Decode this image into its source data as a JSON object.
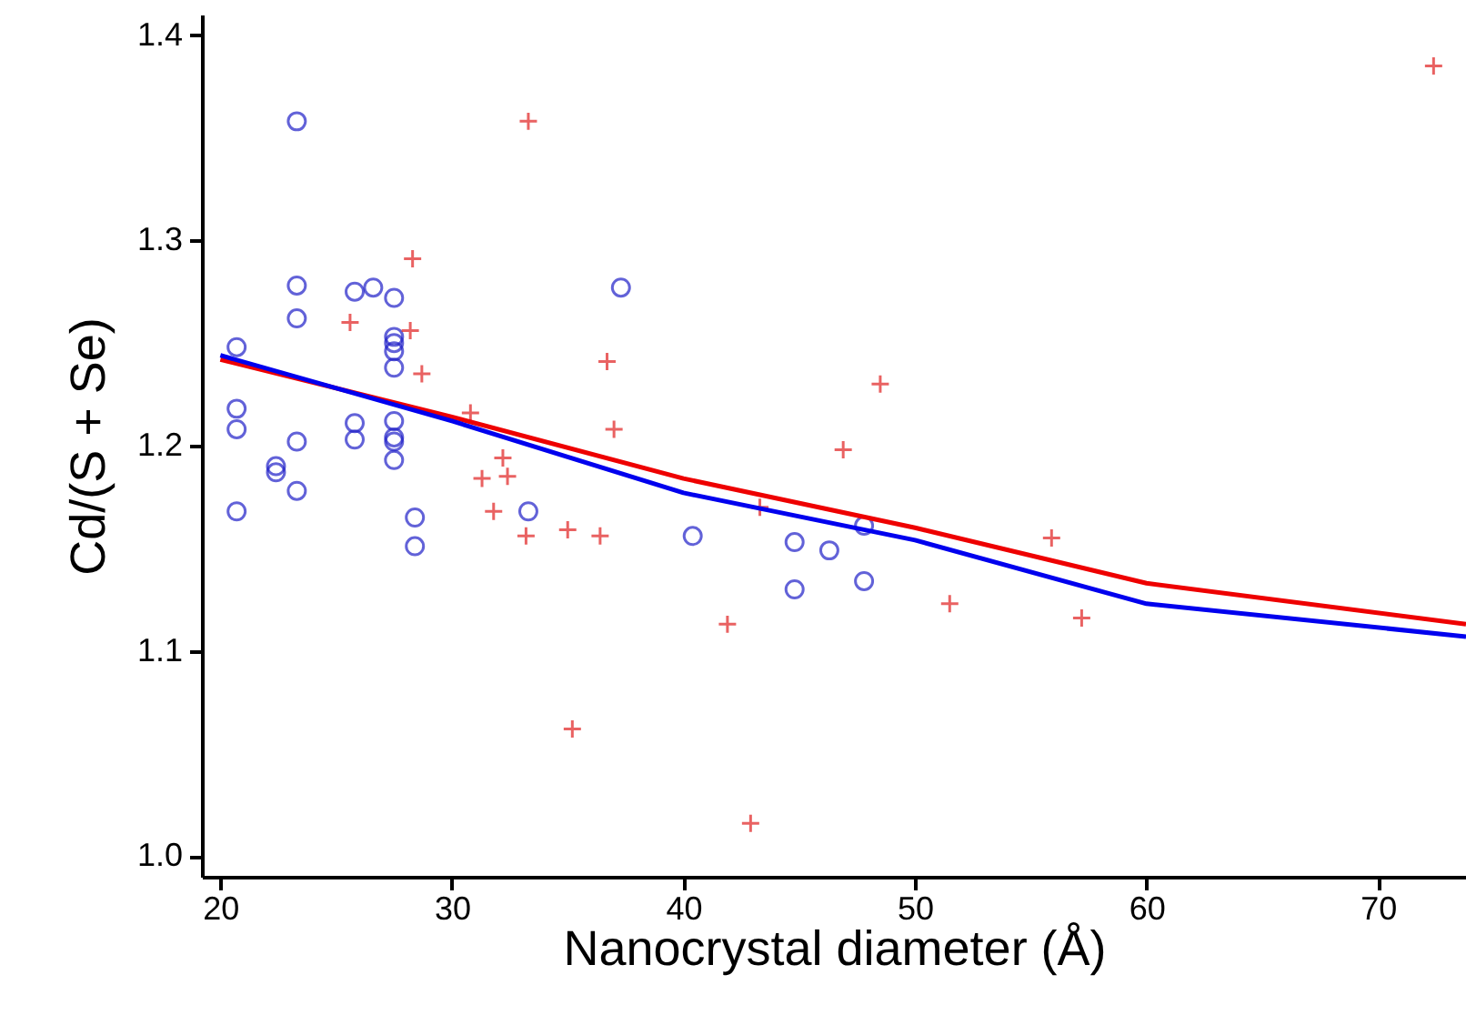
{
  "chart_data": {
    "type": "scatter",
    "xlabel": "Nanocrystal diameter (Å)",
    "ylabel": "Cd/(S + Se)",
    "xlim": [
      19.2,
      73.8
    ],
    "ylim": [
      0.99,
      1.41
    ],
    "xticks": [
      20,
      30,
      40,
      50,
      60,
      70
    ],
    "yticks": [
      {
        "value": 1,
        "label": "1.0"
      },
      1.1,
      1.2,
      1.3,
      1.4
    ],
    "grid": false,
    "series": [
      {
        "marker": "circle",
        "color": "#2020c8",
        "x": [
          20.7,
          20.7,
          20.7,
          20.7,
          22.4,
          22.4,
          23.3,
          23.3,
          23.3,
          23.3,
          23.3,
          25.8,
          25.8,
          25.8,
          26.6,
          27.5,
          27.5,
          27.5,
          27.5,
          27.5,
          27.5,
          27.5,
          27.5,
          27.5,
          28.4,
          28.4,
          33.3,
          37.3,
          40.4,
          44.8,
          44.8,
          46.3,
          47.8,
          47.8
        ],
        "values": [
          1.248,
          1.218,
          1.208,
          1.168,
          1.19,
          1.187,
          1.358,
          1.278,
          1.262,
          1.202,
          1.178,
          1.275,
          1.211,
          1.203,
          1.277,
          1.272,
          1.253,
          1.25,
          1.246,
          1.238,
          1.212,
          1.204,
          1.202,
          1.193,
          1.165,
          1.151,
          1.168,
          1.277,
          1.156,
          1.153,
          1.13,
          1.149,
          1.161,
          1.134
        ]
      },
      {
        "marker": "cross",
        "color": "#e02020",
        "x": [
          25.6,
          28.2,
          28.3,
          28.7,
          30.8,
          31.3,
          31.8,
          32.2,
          32.4,
          33.2,
          33.3,
          35.0,
          35.2,
          36.4,
          36.7,
          37.0,
          41.9,
          42.9,
          43.3,
          46.9,
          48.5,
          51.5,
          55.9,
          57.2,
          72.4
        ],
        "values": [
          1.26,
          1.256,
          1.291,
          1.235,
          1.216,
          1.184,
          1.168,
          1.194,
          1.185,
          1.156,
          1.358,
          1.159,
          1.062,
          1.156,
          1.241,
          1.208,
          1.113,
          1.016,
          1.17,
          1.198,
          1.23,
          1.123,
          1.155,
          1.116,
          1.385
        ]
      },
      {
        "type": "line",
        "color": "#ee0000",
        "x": [
          20,
          30,
          40,
          50,
          60,
          73.8
        ],
        "values": [
          1.242,
          1.214,
          1.184,
          1.16,
          1.133,
          1.113
        ]
      },
      {
        "type": "line",
        "color": "#0000ee",
        "x": [
          20,
          30,
          40,
          50,
          60,
          73.8
        ],
        "values": [
          1.244,
          1.212,
          1.177,
          1.154,
          1.123,
          1.107
        ]
      }
    ]
  }
}
